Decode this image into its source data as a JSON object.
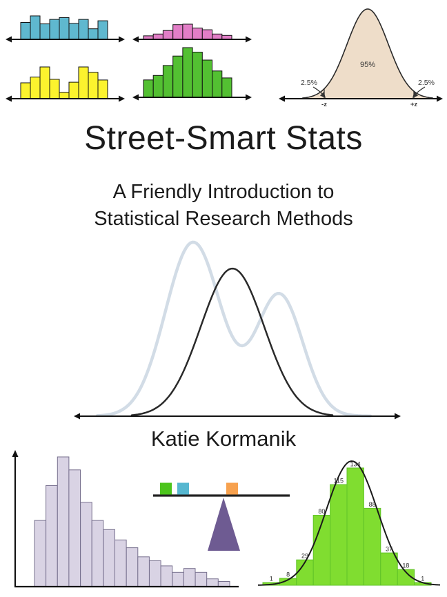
{
  "cover": {
    "title": "Street-Smart Stats",
    "subtitle_line1": "A Friendly Introduction to",
    "subtitle_line2": "Statistical Research Methods",
    "author": "Katie Kormanik"
  },
  "colors": {
    "background": "#ffffff",
    "text": "#1b1b1b",
    "axis": "#111111"
  },
  "chart_data": [
    {
      "id": "mini-histogram-uniform",
      "type": "bar",
      "description": "small histogram, roughly uniform distribution",
      "values": [
        0.72,
        1.0,
        0.66,
        0.85,
        0.93,
        0.68,
        0.85,
        0.45,
        0.79
      ],
      "bar_color": "#5fb8cf",
      "bar_outline": "#111111"
    },
    {
      "id": "mini-histogram-bell-pink",
      "type": "bar",
      "description": "small histogram, bell-shaped distribution",
      "values": [
        0.23,
        0.35,
        0.58,
        0.97,
        1.0,
        0.74,
        0.63,
        0.35,
        0.26
      ],
      "bar_color": "#e27ec7",
      "bar_outline": "#111111"
    },
    {
      "id": "mini-histogram-bimodal-yellow",
      "type": "bar",
      "description": "small histogram, bimodal distribution",
      "values": [
        0.5,
        0.68,
        1.0,
        0.61,
        0.2,
        0.52,
        1.0,
        0.83,
        0.59
      ],
      "bar_color": "#fcf32e",
      "bar_outline": "#111111"
    },
    {
      "id": "mini-histogram-bell-green",
      "type": "bar",
      "description": "small histogram, bell-shaped distribution",
      "values": [
        0.35,
        0.44,
        0.64,
        0.83,
        1.0,
        0.91,
        0.75,
        0.53,
        0.39
      ],
      "bar_color": "#53c032",
      "bar_outline": "#111111"
    },
    {
      "id": "normal-curve-95pct",
      "type": "area",
      "description": "standard normal curve with 95% central area and 2.5% tails",
      "labels": {
        "center": "95%",
        "left_tail": "2.5%",
        "right_tail": "2.5%",
        "left_cutoff": "-z",
        "right_cutoff": "+z"
      },
      "fill_color": "#eeddc9",
      "line_color": "#2a2a2a"
    },
    {
      "id": "overlapping-distributions",
      "type": "line",
      "description": "light bimodal curve behind a black normal curve",
      "series": [
        {
          "name": "bimodal-light",
          "color": "#d2dce6",
          "width": 4.5,
          "peaks": [
            {
              "mu": 177,
              "amp": 252,
              "sigma": 40
            },
            {
              "mu": 302,
              "amp": 176,
              "sigma": 34
            }
          ],
          "domain": [
            38,
            436
          ]
        },
        {
          "name": "normal-black",
          "color": "#2a2a2a",
          "width": 2.5,
          "peaks": [
            {
              "mu": 234,
              "amp": 214,
              "sigma": 46
            }
          ],
          "domain": [
            88,
            380
          ]
        }
      ]
    },
    {
      "id": "right-skewed-histogram",
      "type": "bar",
      "description": "right-skewed histogram with y-axis",
      "values": [
        0.51,
        0.78,
        1.0,
        0.9,
        0.65,
        0.51,
        0.44,
        0.36,
        0.3,
        0.23,
        0.2,
        0.16,
        0.11,
        0.14,
        0.11,
        0.06,
        0.04
      ],
      "bar_color": "#d9d3e4",
      "bar_outline": "#77708e"
    },
    {
      "id": "normal-histogram-green",
      "type": "bar",
      "description": "green frequency histogram with fitted normal curve",
      "values": [
        1,
        8,
        29,
        80,
        115,
        134,
        88,
        37,
        18,
        1
      ],
      "bar_labels": [
        "1",
        "8",
        "29",
        "80",
        "115",
        "134",
        "88",
        "37",
        "18",
        "1"
      ],
      "bar_color": "#80dd30",
      "bar_outline": "#5fc228",
      "label_color": "#2b2b2b",
      "curve_color": "#1a1a1a",
      "curve": {
        "mu": 138,
        "amp": 180,
        "sigma": 37,
        "domain": [
          2,
          266
        ]
      }
    }
  ],
  "figures": {
    "balance_beam": {
      "description": "seesaw balance with three blocks and triangle fulcrum",
      "beam_color": "#222222",
      "blocks": [
        {
          "name": "green-block",
          "color": "#4cc41c"
        },
        {
          "name": "blue-block",
          "color": "#56b7d0"
        },
        {
          "name": "orange-block",
          "color": "#f7a14e"
        }
      ],
      "fulcrum_color": "#6e5b92"
    }
  }
}
